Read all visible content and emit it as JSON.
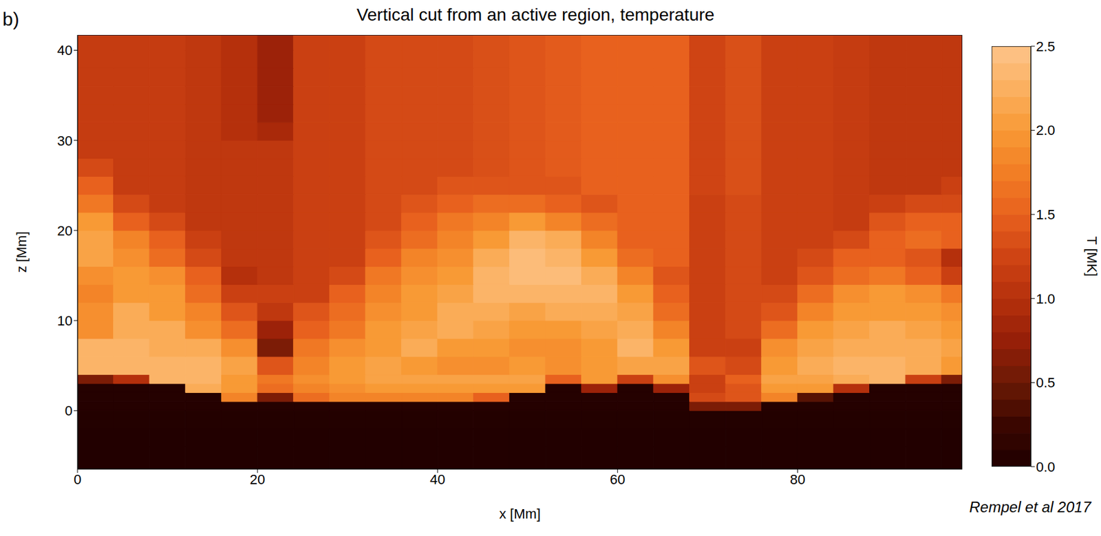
{
  "chart_data": {
    "type": "heatmap",
    "title": "Vertical cut from an active region, temperature",
    "panel": "b)",
    "source": "Rempel et al 2017",
    "x_label": "x [Mm]",
    "y_label": "z [Mm]",
    "xlim": [
      0,
      98.3
    ],
    "ylim": [
      -6.5,
      41.7
    ],
    "xticks": [
      0,
      20,
      40,
      60,
      80
    ],
    "yticks": [
      0,
      10,
      20,
      30,
      40
    ],
    "x_edges": [
      0,
      4,
      8,
      12,
      16,
      20,
      24,
      28,
      32,
      36,
      40,
      44,
      48,
      52,
      56,
      60,
      64,
      68,
      72,
      76,
      80,
      84,
      88,
      92,
      96,
      98.3
    ],
    "y_edges": [
      -6.5,
      -4,
      -2,
      0,
      1,
      2,
      3,
      4,
      6,
      8,
      10,
      12,
      14,
      16,
      18,
      20,
      22,
      24,
      26,
      28,
      30,
      32,
      34,
      36,
      38,
      40,
      41.7
    ],
    "cells": [
      [
        0.02,
        0.02,
        0.02,
        0.02,
        0.02,
        0.02,
        0.02,
        0.02,
        0.02,
        0.02,
        0.02,
        0.02,
        0.02,
        0.02,
        0.02,
        0.02,
        0.02,
        0.02,
        0.02,
        0.02,
        0.02,
        0.02,
        0.02,
        0.02,
        0.02
      ],
      [
        0.02,
        0.02,
        0.02,
        0.02,
        0.02,
        0.02,
        0.02,
        0.02,
        0.02,
        0.02,
        0.02,
        0.02,
        0.02,
        0.02,
        0.02,
        0.02,
        0.02,
        0.02,
        0.02,
        0.02,
        0.02,
        0.02,
        0.02,
        0.02,
        0.02
      ],
      [
        0.03,
        0.03,
        0.03,
        0.03,
        0.03,
        0.03,
        0.03,
        0.03,
        0.03,
        0.03,
        0.03,
        0.03,
        0.03,
        0.03,
        0.03,
        0.03,
        0.03,
        0.03,
        0.03,
        0.03,
        0.03,
        0.03,
        0.03,
        0.03,
        0.03
      ],
      [
        0.05,
        0.05,
        0.05,
        0.05,
        0.05,
        0.05,
        0.05,
        0.05,
        0.05,
        0.05,
        0.05,
        0.05,
        0.05,
        0.05,
        0.05,
        0.05,
        0.05,
        0.6,
        0.6,
        0.05,
        0.05,
        0.05,
        0.05,
        0.05,
        0.05
      ],
      [
        0.05,
        0.05,
        0.05,
        0.05,
        1.8,
        0.6,
        1.6,
        1.8,
        1.8,
        1.8,
        1.8,
        1.5,
        0.05,
        0.05,
        0.05,
        0.05,
        0.05,
        1.3,
        1.4,
        1.8,
        0.4,
        0.05,
        0.05,
        0.05,
        0.05
      ],
      [
        0.05,
        0.05,
        0.05,
        2.2,
        2.0,
        1.6,
        1.8,
        1.9,
        2.0,
        2.0,
        2.0,
        2.0,
        2.0,
        0.05,
        0.8,
        0.05,
        0.8,
        1.2,
        1.4,
        2.0,
        2.0,
        1.0,
        0.05,
        0.05,
        0.05
      ],
      [
        0.6,
        1.0,
        2.3,
        2.3,
        2.0,
        1.7,
        1.9,
        2.0,
        2.1,
        2.1,
        2.1,
        2.1,
        2.1,
        1.5,
        2.0,
        1.2,
        1.9,
        1.2,
        1.5,
        2.1,
        2.1,
        2.2,
        2.3,
        1.2,
        0.6
      ],
      [
        2.3,
        2.3,
        2.3,
        2.3,
        2.1,
        1.4,
        1.8,
        2.0,
        2.1,
        2.0,
        1.9,
        1.9,
        2.0,
        1.9,
        2.0,
        2.1,
        2.1,
        1.4,
        1.3,
        2.0,
        2.2,
        2.3,
        2.3,
        2.2,
        2.0
      ],
      [
        2.3,
        2.3,
        2.2,
        2.2,
        1.9,
        0.6,
        1.7,
        1.9,
        2.0,
        2.2,
        2.0,
        2.0,
        1.9,
        1.9,
        2.0,
        2.3,
        2.0,
        1.2,
        1.2,
        1.9,
        2.1,
        2.2,
        2.2,
        2.2,
        2.1
      ],
      [
        1.9,
        2.2,
        2.2,
        1.9,
        1.6,
        0.8,
        1.5,
        1.7,
        2.0,
        2.1,
        2.2,
        2.1,
        2.0,
        2.0,
        2.1,
        2.2,
        1.8,
        1.2,
        1.3,
        1.6,
        2.0,
        2.1,
        2.2,
        2.1,
        2.0
      ],
      [
        1.9,
        2.2,
        2.0,
        1.8,
        1.4,
        1.1,
        1.4,
        1.6,
        1.9,
        2.0,
        2.2,
        2.2,
        2.1,
        2.2,
        2.2,
        2.1,
        1.6,
        1.2,
        1.3,
        1.4,
        1.8,
        2.0,
        2.0,
        2.0,
        1.9
      ],
      [
        1.8,
        2.0,
        2.0,
        1.6,
        1.2,
        1.2,
        1.2,
        1.5,
        1.8,
        2.0,
        2.1,
        2.3,
        2.3,
        2.3,
        2.3,
        2.0,
        1.5,
        1.2,
        1.3,
        1.3,
        1.6,
        1.9,
        2.0,
        1.9,
        1.7
      ],
      [
        1.9,
        2.0,
        1.9,
        1.5,
        1.0,
        1.1,
        1.2,
        1.3,
        1.7,
        1.9,
        2.0,
        2.3,
        2.4,
        2.4,
        2.2,
        1.8,
        1.4,
        1.2,
        1.3,
        1.2,
        1.4,
        1.6,
        1.7,
        1.5,
        1.2
      ],
      [
        2.1,
        1.9,
        1.6,
        1.3,
        1.1,
        1.1,
        1.2,
        1.2,
        1.5,
        1.8,
        1.9,
        2.2,
        2.4,
        2.3,
        2.0,
        1.6,
        1.5,
        1.2,
        1.3,
        1.2,
        1.3,
        1.5,
        1.5,
        1.4,
        1.0
      ],
      [
        2.1,
        1.8,
        1.5,
        1.2,
        1.1,
        1.1,
        1.2,
        1.2,
        1.4,
        1.6,
        1.8,
        2.0,
        2.3,
        2.2,
        1.8,
        1.5,
        1.5,
        1.2,
        1.3,
        1.2,
        1.2,
        1.3,
        1.5,
        1.6,
        1.5
      ],
      [
        2.0,
        1.5,
        1.3,
        1.1,
        1.1,
        1.1,
        1.2,
        1.2,
        1.3,
        1.5,
        1.7,
        1.8,
        2.0,
        1.8,
        1.6,
        1.5,
        1.5,
        1.2,
        1.3,
        1.2,
        1.2,
        1.15,
        1.4,
        1.5,
        1.5
      ],
      [
        1.7,
        1.3,
        1.15,
        1.1,
        1.1,
        1.1,
        1.2,
        1.2,
        1.3,
        1.4,
        1.5,
        1.6,
        1.6,
        1.5,
        1.4,
        1.5,
        1.5,
        1.2,
        1.3,
        1.2,
        1.2,
        1.15,
        1.2,
        1.3,
        1.3
      ],
      [
        1.5,
        1.15,
        1.15,
        1.1,
        1.1,
        1.1,
        1.2,
        1.2,
        1.3,
        1.3,
        1.4,
        1.4,
        1.4,
        1.4,
        1.5,
        1.5,
        1.5,
        1.25,
        1.35,
        1.2,
        1.2,
        1.15,
        1.1,
        1.1,
        1.2
      ],
      [
        1.3,
        1.15,
        1.15,
        1.1,
        1.1,
        1.1,
        1.2,
        1.2,
        1.3,
        1.3,
        1.3,
        1.35,
        1.4,
        1.45,
        1.5,
        1.5,
        1.5,
        1.25,
        1.35,
        1.2,
        1.2,
        1.15,
        1.1,
        1.1,
        1.1
      ],
      [
        1.15,
        1.15,
        1.15,
        1.1,
        1.1,
        1.1,
        1.2,
        1.2,
        1.3,
        1.3,
        1.3,
        1.35,
        1.4,
        1.45,
        1.5,
        1.5,
        1.5,
        1.25,
        1.35,
        1.2,
        1.2,
        1.15,
        1.1,
        1.1,
        1.1
      ],
      [
        1.15,
        1.15,
        1.15,
        1.1,
        1.0,
        0.9,
        1.2,
        1.2,
        1.3,
        1.3,
        1.3,
        1.35,
        1.4,
        1.45,
        1.5,
        1.5,
        1.5,
        1.25,
        1.35,
        1.2,
        1.2,
        1.15,
        1.1,
        1.1,
        1.1
      ],
      [
        1.15,
        1.15,
        1.15,
        1.1,
        1.0,
        0.8,
        1.2,
        1.2,
        1.3,
        1.3,
        1.3,
        1.35,
        1.4,
        1.45,
        1.5,
        1.5,
        1.5,
        1.25,
        1.35,
        1.2,
        1.2,
        1.15,
        1.1,
        1.1,
        1.1
      ],
      [
        1.15,
        1.15,
        1.15,
        1.1,
        1.0,
        0.8,
        1.2,
        1.2,
        1.3,
        1.3,
        1.3,
        1.35,
        1.4,
        1.45,
        1.5,
        1.5,
        1.5,
        1.25,
        1.35,
        1.2,
        1.2,
        1.15,
        1.1,
        1.1,
        1.1
      ],
      [
        1.15,
        1.15,
        1.15,
        1.1,
        1.0,
        0.8,
        1.2,
        1.2,
        1.3,
        1.3,
        1.3,
        1.35,
        1.4,
        1.45,
        1.5,
        1.5,
        1.5,
        1.25,
        1.35,
        1.2,
        1.2,
        1.15,
        1.1,
        1.1,
        1.1
      ],
      [
        1.15,
        1.15,
        1.15,
        1.1,
        1.0,
        0.8,
        1.2,
        1.2,
        1.3,
        1.3,
        1.3,
        1.35,
        1.4,
        1.45,
        1.5,
        1.5,
        1.5,
        1.25,
        1.35,
        1.2,
        1.2,
        1.15,
        1.1,
        1.1,
        1.1
      ],
      [
        1.15,
        1.15,
        1.15,
        1.1,
        1.0,
        0.8,
        1.2,
        1.2,
        1.3,
        1.3,
        1.3,
        1.35,
        1.4,
        1.45,
        1.5,
        1.5,
        1.5,
        1.25,
        1.35,
        1.2,
        1.2,
        1.15,
        1.1,
        1.1,
        1.1
      ]
    ],
    "colorbar": {
      "label": "T [MK]",
      "range": [
        0,
        2.5
      ],
      "ticks": [
        {
          "value": 0,
          "label": "0.0"
        },
        {
          "value": 0.5,
          "label": "0.5"
        },
        {
          "value": 1,
          "label": "1.0"
        },
        {
          "value": 1.5,
          "label": "1.5"
        },
        {
          "value": 2,
          "label": "2.0"
        },
        {
          "value": 2.5,
          "label": "2.5"
        }
      ]
    }
  }
}
